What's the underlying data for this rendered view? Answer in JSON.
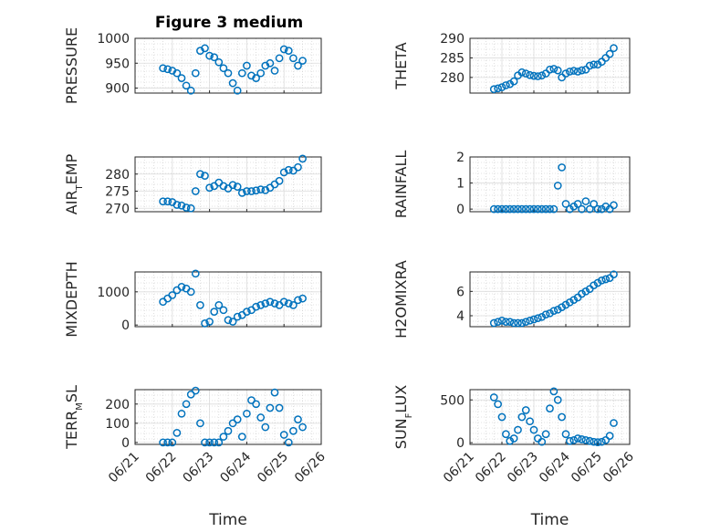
{
  "figure": {
    "title": "Figure 3 medium"
  },
  "chart_data": [
    {
      "type": "scatter",
      "ylabel": "PRESSURE",
      "yticks": [
        "1000",
        "950",
        "900"
      ],
      "ylim": [
        890,
        1000
      ],
      "xticks": [
        "06/21",
        "06/22",
        "06/23",
        "06/24",
        "06/25",
        "06/26"
      ],
      "xlim": [
        "2021-06-21",
        "2021-06-26"
      ],
      "xlabel": "",
      "tick_labels_shown": false,
      "x": [
        "06/21 18:00",
        "06/21 21:00",
        "06/22 00:00",
        "06/22 03:00",
        "06/22 06:00",
        "06/22 09:00",
        "06/22 12:00",
        "06/22 15:00",
        "06/22 18:00",
        "06/22 21:00",
        "06/23 00:00",
        "06/23 03:00",
        "06/23 06:00",
        "06/23 09:00",
        "06/23 12:00",
        "06/23 15:00",
        "06/23 18:00",
        "06/23 21:00",
        "06/24 00:00",
        "06/24 03:00",
        "06/24 06:00",
        "06/24 09:00",
        "06/24 12:00",
        "06/24 15:00",
        "06/24 18:00",
        "06/24 21:00",
        "06/25 00:00",
        "06/25 03:00",
        "06/25 06:00",
        "06/25 09:00",
        "06/25 12:00"
      ],
      "y": [
        940,
        938,
        935,
        930,
        920,
        905,
        895,
        930,
        975,
        980,
        965,
        962,
        952,
        940,
        930,
        910,
        895,
        930,
        945,
        925,
        920,
        930,
        945,
        950,
        935,
        960,
        978,
        975,
        960,
        945,
        955
      ]
    },
    {
      "type": "scatter",
      "ylabel": "THETA",
      "yticks": [
        "290",
        "285",
        "280"
      ],
      "ylim": [
        276,
        290
      ],
      "xticks": [
        "06/21",
        "06/22",
        "06/23",
        "06/24",
        "06/25",
        "06/26"
      ],
      "xlim": [
        "2021-06-21",
        "2021-06-26"
      ],
      "xlabel": "",
      "tick_labels_shown": false,
      "x": [
        "06/21 18:00",
        "06/21 21:00",
        "06/22 00:00",
        "06/22 03:00",
        "06/22 06:00",
        "06/22 09:00",
        "06/22 12:00",
        "06/22 15:00",
        "06/22 18:00",
        "06/22 21:00",
        "06/23 00:00",
        "06/23 03:00",
        "06/23 06:00",
        "06/23 09:00",
        "06/23 12:00",
        "06/23 15:00",
        "06/23 18:00",
        "06/23 21:00",
        "06/24 00:00",
        "06/24 03:00",
        "06/24 06:00",
        "06/24 09:00",
        "06/24 12:00",
        "06/24 15:00",
        "06/24 18:00",
        "06/24 21:00",
        "06/25 00:00",
        "06/25 03:00",
        "06/25 06:00",
        "06/25 09:00",
        "06/25 12:00"
      ],
      "y": [
        277,
        277.2,
        277.5,
        278,
        278.3,
        279,
        280.5,
        281.3,
        281,
        280.6,
        280.4,
        280.3,
        280.5,
        281,
        282,
        282.2,
        281.8,
        280,
        281,
        281.5,
        281.7,
        281.5,
        281.8,
        282,
        283,
        283.3,
        283.3,
        284,
        285,
        286,
        287.5
      ]
    },
    {
      "type": "scatter",
      "ylabel": "AIR_TEMP",
      "yticks": [
        "280",
        "275",
        "270"
      ],
      "ylim": [
        269,
        285
      ],
      "xticks": [
        "06/21",
        "06/22",
        "06/23",
        "06/24",
        "06/25",
        "06/26"
      ],
      "xlim": [
        "2021-06-21",
        "2021-06-26"
      ],
      "xlabel": "",
      "tick_labels_shown": false,
      "x": [
        "06/21 18:00",
        "06/21 21:00",
        "06/22 00:00",
        "06/22 03:00",
        "06/22 06:00",
        "06/22 09:00",
        "06/22 12:00",
        "06/22 15:00",
        "06/22 18:00",
        "06/22 21:00",
        "06/23 00:00",
        "06/23 03:00",
        "06/23 06:00",
        "06/23 09:00",
        "06/23 12:00",
        "06/23 15:00",
        "06/23 18:00",
        "06/23 21:00",
        "06/24 00:00",
        "06/24 03:00",
        "06/24 06:00",
        "06/24 09:00",
        "06/24 12:00",
        "06/24 15:00",
        "06/24 18:00",
        "06/24 21:00",
        "06/25 00:00",
        "06/25 03:00",
        "06/25 06:00",
        "06/25 09:00",
        "06/25 12:00"
      ],
      "y": [
        272,
        272,
        271.8,
        271,
        270.8,
        270.2,
        270,
        275,
        280,
        279.5,
        276,
        276.5,
        277.5,
        276.5,
        275.8,
        276.8,
        276.3,
        274.5,
        275,
        275,
        275.2,
        275.5,
        275.3,
        276,
        277,
        278,
        280.5,
        281.2,
        281,
        282,
        284.5
      ]
    },
    {
      "type": "scatter",
      "ylabel": "RAINFALL",
      "yticks": [
        "2",
        "1",
        "0"
      ],
      "ylim": [
        -0.1,
        2
      ],
      "xticks": [
        "06/21",
        "06/22",
        "06/23",
        "06/24",
        "06/25",
        "06/26"
      ],
      "xlim": [
        "2021-06-21",
        "2021-06-26"
      ],
      "xlabel": "",
      "tick_labels_shown": false,
      "x": [
        "06/21 18:00",
        "06/21 21:00",
        "06/22 00:00",
        "06/22 03:00",
        "06/22 06:00",
        "06/22 09:00",
        "06/22 12:00",
        "06/22 15:00",
        "06/22 18:00",
        "06/22 21:00",
        "06/23 00:00",
        "06/23 03:00",
        "06/23 06:00",
        "06/23 09:00",
        "06/23 12:00",
        "06/23 15:00",
        "06/23 18:00",
        "06/23 21:00",
        "06/24 00:00",
        "06/24 03:00",
        "06/24 06:00",
        "06/24 09:00",
        "06/24 12:00",
        "06/24 15:00",
        "06/24 18:00",
        "06/24 21:00",
        "06/25 00:00",
        "06/25 03:00",
        "06/25 06:00",
        "06/25 09:00",
        "06/25 12:00"
      ],
      "y": [
        0,
        0,
        0,
        0,
        0,
        0,
        0,
        0,
        0,
        0,
        0,
        0,
        0,
        0,
        0,
        0,
        0.9,
        1.6,
        0.2,
        0,
        0.1,
        0.2,
        0,
        0.3,
        0,
        0.2,
        0,
        0,
        0.1,
        0,
        0.15
      ]
    },
    {
      "type": "scatter",
      "ylabel": "MIXDEPTH",
      "yticks": [
        "1000",
        "0"
      ],
      "ylim": [
        -50,
        1600
      ],
      "xticks": [
        "06/21",
        "06/22",
        "06/23",
        "06/24",
        "06/25",
        "06/26"
      ],
      "xlim": [
        "2021-06-21",
        "2021-06-26"
      ],
      "xlabel": "",
      "tick_labels_shown": false,
      "x": [
        "06/21 18:00",
        "06/21 21:00",
        "06/22 00:00",
        "06/22 03:00",
        "06/22 06:00",
        "06/22 09:00",
        "06/22 12:00",
        "06/22 15:00",
        "06/22 18:00",
        "06/22 21:00",
        "06/23 00:00",
        "06/23 03:00",
        "06/23 06:00",
        "06/23 09:00",
        "06/23 12:00",
        "06/23 15:00",
        "06/23 18:00",
        "06/23 21:00",
        "06/24 00:00",
        "06/24 03:00",
        "06/24 06:00",
        "06/24 09:00",
        "06/24 12:00",
        "06/24 15:00",
        "06/24 18:00",
        "06/24 21:00",
        "06/25 00:00",
        "06/25 03:00",
        "06/25 06:00",
        "06/25 09:00",
        "06/25 12:00"
      ],
      "y": [
        700,
        800,
        900,
        1050,
        1150,
        1100,
        1000,
        1550,
        600,
        50,
        100,
        400,
        600,
        450,
        150,
        100,
        250,
        300,
        400,
        450,
        550,
        600,
        650,
        700,
        650,
        600,
        700,
        650,
        600,
        750,
        800
      ]
    },
    {
      "type": "scatter",
      "ylabel": "H2OMIXRA",
      "yticks": [
        "6",
        "4"
      ],
      "ylim": [
        3.1,
        7.6
      ],
      "xticks": [
        "06/21",
        "06/22",
        "06/23",
        "06/24",
        "06/25",
        "06/26"
      ],
      "xlim": [
        "2021-06-21",
        "2021-06-26"
      ],
      "xlabel": "",
      "tick_labels_shown": false,
      "x": [
        "06/21 18:00",
        "06/21 21:00",
        "06/22 00:00",
        "06/22 03:00",
        "06/22 06:00",
        "06/22 09:00",
        "06/22 12:00",
        "06/22 15:00",
        "06/22 18:00",
        "06/22 21:00",
        "06/23 00:00",
        "06/23 03:00",
        "06/23 06:00",
        "06/23 09:00",
        "06/23 12:00",
        "06/23 15:00",
        "06/23 18:00",
        "06/23 21:00",
        "06/24 00:00",
        "06/24 03:00",
        "06/24 06:00",
        "06/24 09:00",
        "06/24 12:00",
        "06/24 15:00",
        "06/24 18:00",
        "06/24 21:00",
        "06/25 00:00",
        "06/25 03:00",
        "06/25 06:00",
        "06/25 09:00",
        "06/25 12:00"
      ],
      "y": [
        3.4,
        3.5,
        3.6,
        3.5,
        3.5,
        3.4,
        3.4,
        3.4,
        3.5,
        3.6,
        3.7,
        3.8,
        3.9,
        4.1,
        4.2,
        4.4,
        4.5,
        4.7,
        4.9,
        5.1,
        5.3,
        5.5,
        5.8,
        6.0,
        6.2,
        6.5,
        6.7,
        6.9,
        7.0,
        7.1,
        7.4
      ]
    },
    {
      "type": "scatter",
      "ylabel": "TERR_MSL",
      "yticks": [
        "200",
        "100",
        "0"
      ],
      "ylim": [
        -10,
        275
      ],
      "xticks": [
        "06/21",
        "06/22",
        "06/23",
        "06/24",
        "06/25",
        "06/26"
      ],
      "xlim": [
        "2021-06-21",
        "2021-06-26"
      ],
      "xlabel": "Time",
      "x": [
        "06/21 18:00",
        "06/21 21:00",
        "06/22 00:00",
        "06/22 03:00",
        "06/22 06:00",
        "06/22 09:00",
        "06/22 12:00",
        "06/22 15:00",
        "06/22 18:00",
        "06/22 21:00",
        "06/23 00:00",
        "06/23 03:00",
        "06/23 06:00",
        "06/23 09:00",
        "06/23 12:00",
        "06/23 15:00",
        "06/23 18:00",
        "06/23 21:00",
        "06/24 00:00",
        "06/24 03:00",
        "06/24 06:00",
        "06/24 09:00",
        "06/24 12:00",
        "06/24 15:00",
        "06/24 18:00",
        "06/24 21:00",
        "06/25 00:00",
        "06/25 03:00",
        "06/25 06:00",
        "06/25 09:00",
        "06/25 12:00"
      ],
      "y": [
        0,
        0,
        0,
        50,
        150,
        200,
        250,
        270,
        100,
        0,
        0,
        0,
        0,
        30,
        60,
        100,
        120,
        30,
        150,
        220,
        200,
        130,
        80,
        180,
        260,
        180,
        40,
        0,
        60,
        120,
        80
      ]
    },
    {
      "type": "scatter",
      "ylabel": "SUN_FLUX",
      "yticks": [
        "500",
        "0"
      ],
      "ylim": [
        -20,
        620
      ],
      "xticks": [
        "06/21",
        "06/22",
        "06/23",
        "06/24",
        "06/25",
        "06/26"
      ],
      "xlim": [
        "2021-06-21",
        "2021-06-26"
      ],
      "xlabel": "Time",
      "x": [
        "06/21 18:00",
        "06/21 21:00",
        "06/22 00:00",
        "06/22 03:00",
        "06/22 06:00",
        "06/22 09:00",
        "06/22 12:00",
        "06/22 15:00",
        "06/22 18:00",
        "06/22 21:00",
        "06/23 00:00",
        "06/23 03:00",
        "06/23 06:00",
        "06/23 09:00",
        "06/23 12:00",
        "06/23 15:00",
        "06/23 18:00",
        "06/23 21:00",
        "06/24 00:00",
        "06/24 03:00",
        "06/24 06:00",
        "06/24 09:00",
        "06/24 12:00",
        "06/24 15:00",
        "06/24 18:00",
        "06/24 21:00",
        "06/25 00:00",
        "06/25 03:00",
        "06/25 06:00",
        "06/25 09:00",
        "06/25 12:00"
      ],
      "y": [
        530,
        450,
        300,
        100,
        20,
        50,
        150,
        300,
        380,
        250,
        150,
        50,
        10,
        100,
        400,
        600,
        500,
        300,
        100,
        20,
        30,
        50,
        40,
        30,
        20,
        10,
        5,
        10,
        30,
        80,
        230
      ]
    }
  ]
}
